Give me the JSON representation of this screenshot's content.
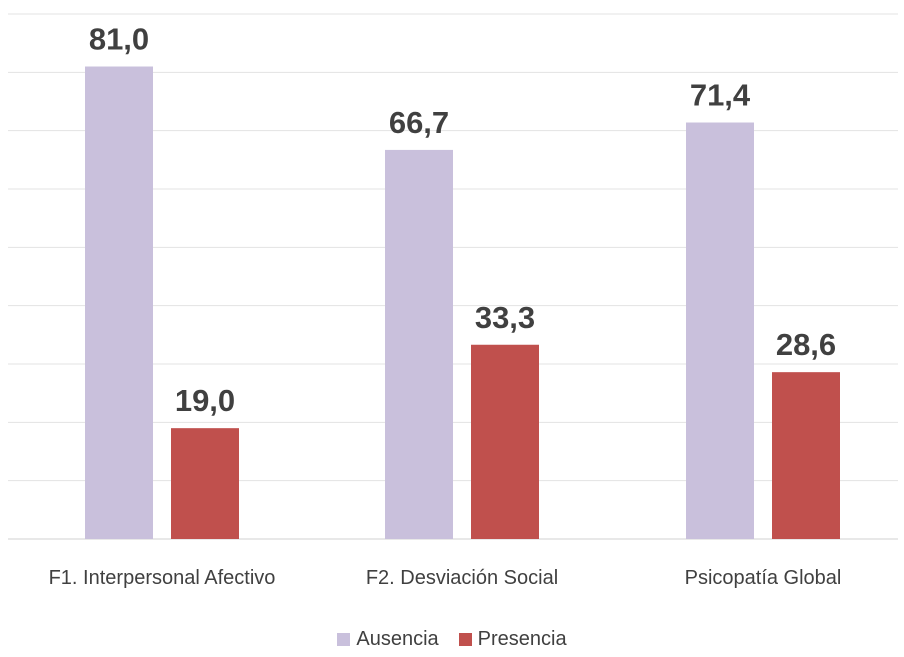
{
  "chart_data": {
    "type": "bar",
    "categories": [
      "F1. Interpersonal Afectivo",
      "F2. Desviación Social",
      "Psicopatía Global"
    ],
    "series": [
      {
        "name": "Ausencia",
        "values": [
          81.0,
          66.7,
          71.4
        ],
        "labels": [
          "81,0",
          "66,7",
          "71,4"
        ],
        "color": "#c9c0dc"
      },
      {
        "name": "Presencia",
        "values": [
          19.0,
          33.3,
          28.6
        ],
        "labels": [
          "19,0",
          "33,3",
          "28,6"
        ],
        "color": "#c0504d"
      }
    ],
    "ylim": [
      0,
      90
    ],
    "grid": true,
    "legend_position": "bottom"
  }
}
